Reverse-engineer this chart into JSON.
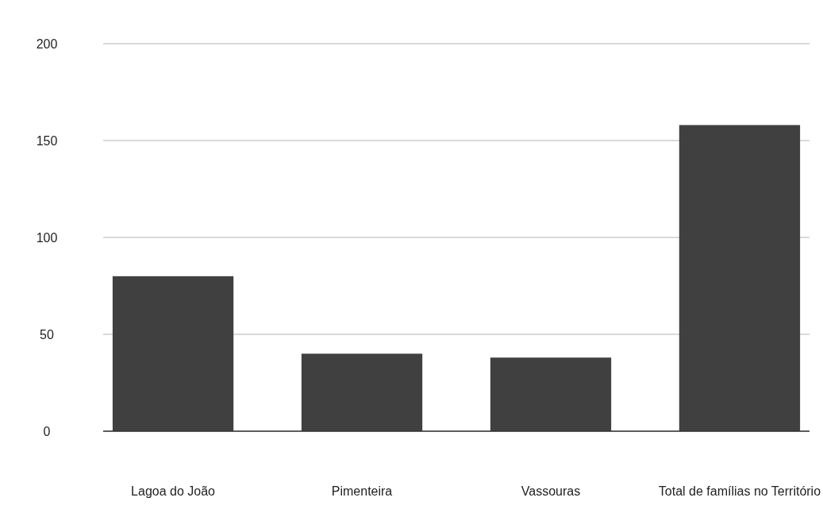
{
  "chart_data": {
    "type": "bar",
    "categories": [
      "Lagoa do João",
      "Pimenteira",
      "Vassouras",
      "Total de famílias no Território"
    ],
    "values": [
      80,
      40,
      38,
      158
    ],
    "color": "#404040",
    "ylim": [
      0,
      200
    ],
    "yticks": [
      0,
      50,
      100,
      150,
      200
    ],
    "grid": "y"
  }
}
